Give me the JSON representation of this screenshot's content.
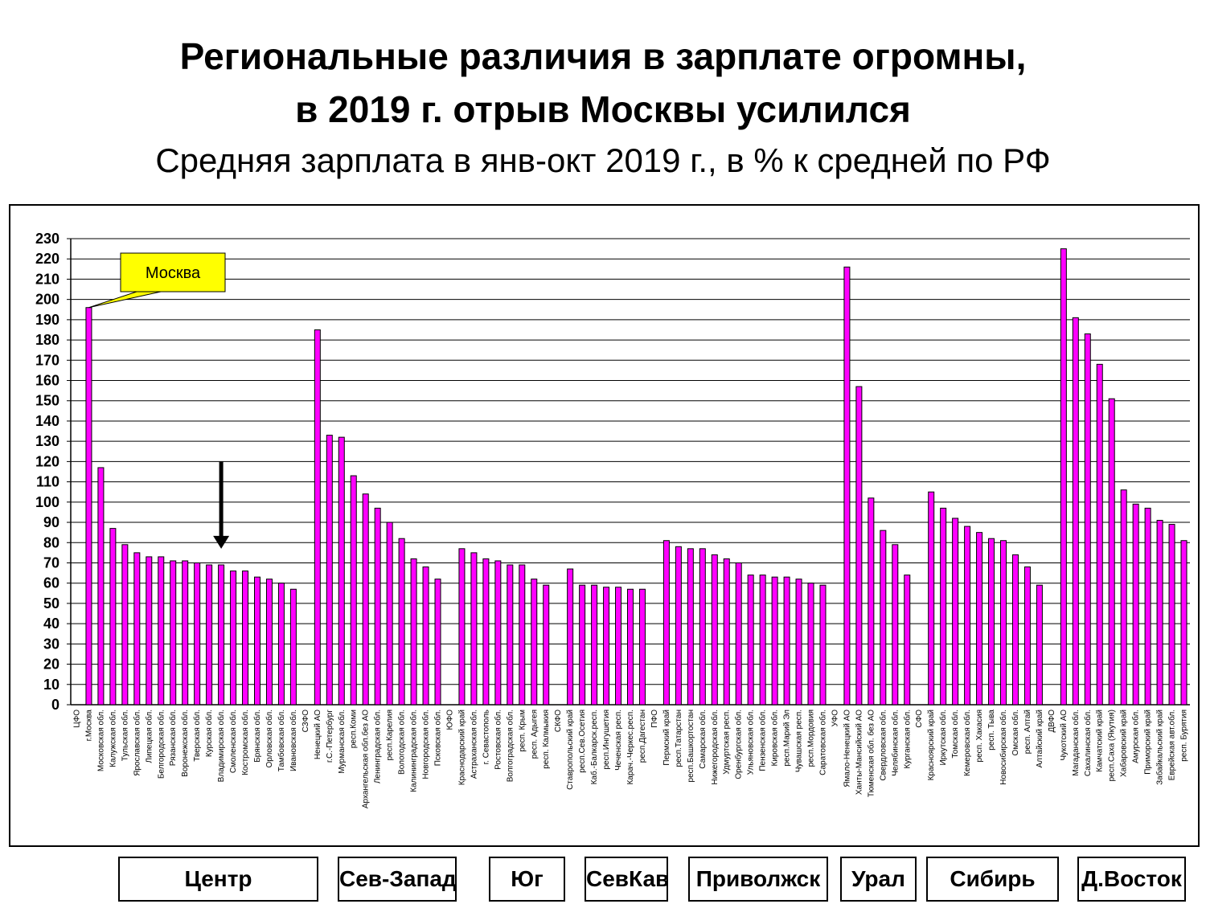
{
  "header": {
    "title_line1": "Региональные различия в зарплате огромны,",
    "title_line2": "в 2019 г. отрыв Москвы усилился",
    "subtitle": "Средняя зарплата в янв-окт 2019 г., в % к средней по РФ"
  },
  "colors": {
    "bar": "#ff00ff",
    "callout": "#ffff00",
    "grid": "#000000"
  },
  "chart_data": {
    "type": "bar",
    "ylim": [
      0,
      230
    ],
    "ytick_step": 10,
    "grid": true,
    "annotations": [
      {
        "text": "Москва",
        "target_category": "г.Москва"
      },
      {
        "type": "arrow-down",
        "target_category": "Владимирская обл."
      }
    ],
    "categories": [
      "ЦФО",
      "г.Москва",
      "Московская обл.",
      "Калужская обл.",
      "Тульская обл.",
      "Ярославская обл.",
      "Липецкая обл.",
      "Белгородская обл.",
      "Рязанская обл.",
      "Воронежская обл.",
      "Тверская обл.",
      "Курская обл.",
      "Владимирская обл.",
      "Смоленская обл.",
      "Костромская обл.",
      "Брянская обл.",
      "Орловская обл.",
      "Тамбовская обл.",
      "Ивановская обл.",
      "СЗФО",
      "Ненецкий АО",
      "г.С.-Петербург",
      "Мурманская обл.",
      "респ.Коми",
      "Архангельская обл.без АО",
      "Ленинградская обл.",
      "респ.Карелия",
      "Вологодская обл.",
      "Калининградская обл.",
      "Новгородская обл.",
      "Псковская обл.",
      "ЮФО",
      "Краснодарский край",
      "Астраханская обл.",
      "г. Севастополь",
      "Ростовская обл.",
      "Волгоградская обл.",
      "респ. Крым",
      "респ. Адыгея",
      "респ. Калмыкия",
      "СКФО",
      "Ставропольский край",
      "респ.Сев.Осетия",
      "Каб.-Балкарск.респ.",
      "респ.Ингушетия",
      "Чеченская респ.",
      "Карач.-Черкес.респ.",
      "респ.Дагестан",
      "ПФО",
      "Пермский край",
      "респ.Татарстан",
      "респ.Башкортостан",
      "Самарская обл.",
      "Нижегородская обл.",
      "Удмуртская респ.",
      "Оренбургская обл.",
      "Ульяновская обл.",
      "Пензенская обл.",
      "Кировская обл.",
      "респ.Марий Эл",
      "Чувашская респ.",
      "респ.Мордовия",
      "Саратовская обл.",
      "УФО",
      "Ямало-Ненецкий АО",
      "Ханты-Мансийский АО",
      "Тюменская обл. без АО",
      "Свердловская обл.",
      "Челябинская обл.",
      "Курганская обл.",
      "СФО",
      "Красноярский край",
      "Иркутская обл.",
      "Томская обл.",
      "Кемеровская обл.",
      "респ. Хакасия",
      "респ. Тыва",
      "Новосибирская обл.",
      "Омская обл.",
      "респ. Алтай",
      "Алтайский край",
      "ДВФО",
      "Чукотский АО",
      "Магаданская обл.",
      "Сахалинская обл.",
      "Камчатский край",
      "респ.Саха (Якутия)",
      "Хабаровский край",
      "Амурская обл.",
      "Приморский край",
      "Забайкальский край",
      "Еврейская авт.обл.",
      "респ. Бурятия"
    ],
    "values": [
      null,
      196,
      117,
      87,
      79,
      75,
      73,
      73,
      71,
      71,
      70,
      69,
      69,
      66,
      66,
      63,
      62,
      60,
      57,
      null,
      185,
      133,
      132,
      113,
      104,
      97,
      90,
      82,
      72,
      68,
      62,
      null,
      77,
      75,
      72,
      71,
      69,
      69,
      62,
      59,
      null,
      67,
      59,
      59,
      58,
      58,
      57,
      57,
      null,
      81,
      78,
      77,
      77,
      74,
      72,
      70,
      64,
      64,
      63,
      63,
      62,
      60,
      59,
      null,
      216,
      157,
      102,
      86,
      79,
      64,
      null,
      105,
      97,
      92,
      88,
      85,
      82,
      81,
      74,
      68,
      59,
      null,
      225,
      191,
      183,
      168,
      151,
      106,
      99,
      97,
      91,
      89,
      81
    ]
  },
  "regions": [
    "Центр",
    "Сев-Запад",
    "Юг",
    "СевКав",
    "Приволжск",
    "Урал",
    "Сибирь",
    "Д.Восток"
  ]
}
